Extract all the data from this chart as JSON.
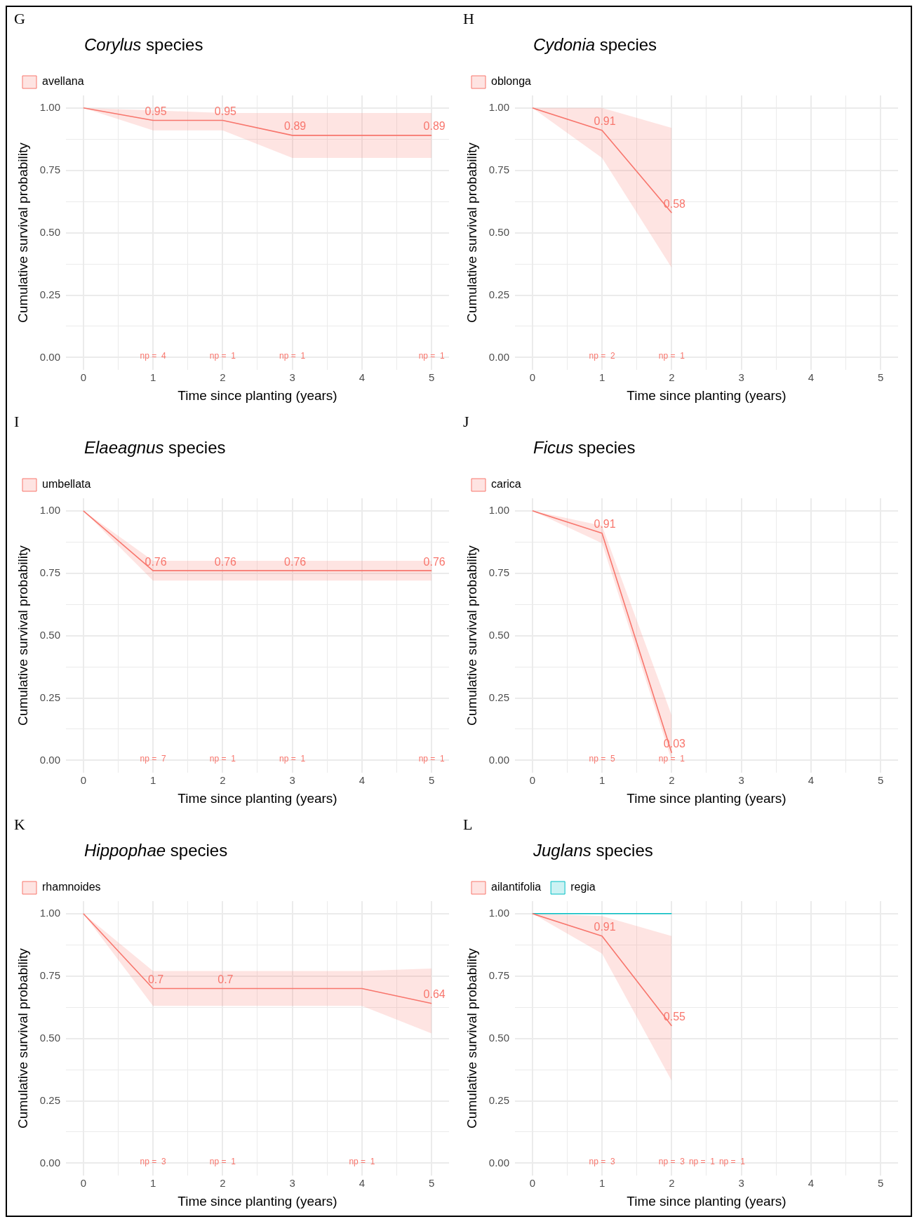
{
  "chart_data": [
    {
      "type": "line",
      "title": "Corylus species",
      "xlabel": "Time since planting (years)",
      "ylabel": "Cumulative survival probability",
      "xlim": [
        -0.25,
        5.25
      ],
      "ylim": [
        -0.05,
        1.05
      ],
      "xticks": [
        0,
        {
          "value": 0.5,
          "label": null
        },
        1,
        {
          "value": 1.5,
          "label": null
        },
        2,
        {
          "value": 2.5,
          "label": null
        },
        3,
        {
          "value": 3.5,
          "label": null
        },
        4,
        {
          "value": 4.5,
          "label": null
        },
        5
      ],
      "yticks": [
        {
          "value": 0,
          "label": "0.00"
        },
        {
          "value": 0.125,
          "label": null
        },
        {
          "value": 0.25,
          "label": "0.25"
        },
        {
          "value": 0.375,
          "label": null
        },
        {
          "value": 0.5,
          "label": "0.50"
        },
        {
          "value": 0.625,
          "label": null
        },
        {
          "value": 0.75,
          "label": "0.75"
        },
        {
          "value": 0.875,
          "label": null
        },
        {
          "value": 1,
          "label": "1.00"
        }
      ],
      "grid": true,
      "legend": "top left",
      "series": [
        {
          "name": "avellana",
          "color": "#f8766d",
          "x": [
            0,
            1,
            2,
            3,
            5
          ],
          "values": [
            1,
            0.95,
            0.95,
            0.89,
            0.89
          ],
          "lower": [
            1,
            0.91,
            0.91,
            0.8,
            0.8
          ],
          "upper": [
            1,
            0.99,
            0.98,
            0.98,
            0.98
          ],
          "value_labels": [
            null,
            "0.95",
            "0.95",
            "0.89",
            "0.89"
          ]
        }
      ],
      "annotations": [
        "G",
        "np =  4",
        "np =  1",
        "np =  1",
        "np =  1"
      ]
    },
    {
      "type": "line",
      "title": "Cydonia species",
      "xlabel": "Time since planting (years)",
      "ylabel": "Cumulative survival probability",
      "xlim": [
        -0.25,
        5.25
      ],
      "ylim": [
        -0.05,
        1.05
      ],
      "xticks": [
        0,
        {
          "value": 0.5,
          "label": null
        },
        1,
        {
          "value": 1.5,
          "label": null
        },
        2,
        {
          "value": 2.5,
          "label": null
        },
        3,
        {
          "value": 3.5,
          "label": null
        },
        4,
        {
          "value": 4.5,
          "label": null
        },
        5
      ],
      "yticks": [
        {
          "value": 0,
          "label": "0.00"
        },
        {
          "value": 0.125,
          "label": null
        },
        {
          "value": 0.25,
          "label": "0.25"
        },
        {
          "value": 0.375,
          "label": null
        },
        {
          "value": 0.5,
          "label": "0.50"
        },
        {
          "value": 0.625,
          "label": null
        },
        {
          "value": 0.75,
          "label": "0.75"
        },
        {
          "value": 0.875,
          "label": null
        },
        {
          "value": 1,
          "label": "1.00"
        }
      ],
      "grid": true,
      "legend": "top left",
      "series": [
        {
          "name": "oblonga",
          "color": "#f8766d",
          "x": [
            0,
            1,
            2
          ],
          "values": [
            1,
            0.91,
            0.58
          ],
          "lower": [
            1,
            0.8,
            0.36
          ],
          "upper": [
            1,
            1,
            0.92
          ],
          "value_labels": [
            null,
            "0.91",
            "0.58"
          ]
        }
      ],
      "annotations": [
        "H",
        "np =  2",
        "np =  1"
      ]
    },
    {
      "type": "line",
      "title": "Elaeagnus species",
      "xlabel": "Time since planting (years)",
      "ylabel": "Cumulative survival probability",
      "xlim": [
        -0.25,
        5.25
      ],
      "ylim": [
        -0.05,
        1.05
      ],
      "xticks": [
        0,
        {
          "value": 0.5,
          "label": null
        },
        1,
        {
          "value": 1.5,
          "label": null
        },
        2,
        {
          "value": 2.5,
          "label": null
        },
        3,
        {
          "value": 3.5,
          "label": null
        },
        4,
        {
          "value": 4.5,
          "label": null
        },
        5
      ],
      "yticks": [
        {
          "value": 0,
          "label": "0.00"
        },
        {
          "value": 0.125,
          "label": null
        },
        {
          "value": 0.25,
          "label": "0.25"
        },
        {
          "value": 0.375,
          "label": null
        },
        {
          "value": 0.5,
          "label": "0.50"
        },
        {
          "value": 0.625,
          "label": null
        },
        {
          "value": 0.75,
          "label": "0.75"
        },
        {
          "value": 0.875,
          "label": null
        },
        {
          "value": 1,
          "label": "1.00"
        }
      ],
      "grid": true,
      "legend": "top left",
      "series": [
        {
          "name": "umbellata",
          "color": "#f8766d",
          "x": [
            0,
            1,
            2,
            3,
            5
          ],
          "values": [
            1,
            0.76,
            0.76,
            0.76,
            0.76
          ],
          "lower": [
            1,
            0.72,
            0.72,
            0.72,
            0.72
          ],
          "upper": [
            1,
            0.8,
            0.8,
            0.8,
            0.8
          ],
          "value_labels": [
            null,
            "0.76",
            "0.76",
            "0.76",
            "0.76"
          ]
        }
      ],
      "annotations": [
        "I",
        "np =  7",
        "np =  1",
        "np =  1",
        "np =  1"
      ]
    },
    {
      "type": "line",
      "title": "Ficus species",
      "xlabel": "Time since planting (years)",
      "ylabel": "Cumulative survival probability",
      "xlim": [
        -0.25,
        5.25
      ],
      "ylim": [
        -0.05,
        1.05
      ],
      "xticks": [
        0,
        {
          "value": 0.5,
          "label": null
        },
        1,
        {
          "value": 1.5,
          "label": null
        },
        2,
        {
          "value": 2.5,
          "label": null
        },
        3,
        {
          "value": 3.5,
          "label": null
        },
        4,
        {
          "value": 4.5,
          "label": null
        },
        5
      ],
      "yticks": [
        {
          "value": 0,
          "label": "0.00"
        },
        {
          "value": 0.125,
          "label": null
        },
        {
          "value": 0.25,
          "label": "0.25"
        },
        {
          "value": 0.375,
          "label": null
        },
        {
          "value": 0.5,
          "label": "0.50"
        },
        {
          "value": 0.625,
          "label": null
        },
        {
          "value": 0.75,
          "label": "0.75"
        },
        {
          "value": 0.875,
          "label": null
        },
        {
          "value": 1,
          "label": "1.00"
        }
      ],
      "grid": true,
      "legend": "top left",
      "series": [
        {
          "name": "carica",
          "color": "#f8766d",
          "x": [
            0,
            1,
            2
          ],
          "values": [
            1,
            0.91,
            0.03
          ],
          "lower": [
            1,
            0.87,
            0
          ],
          "upper": [
            1,
            0.94,
            0.18
          ],
          "value_labels": [
            null,
            "0.91",
            "0.03"
          ]
        }
      ],
      "annotations": [
        "J",
        "np =  5",
        "np =  1"
      ]
    },
    {
      "type": "line",
      "title": "Hippophae species",
      "xlabel": "Time since planting (years)",
      "ylabel": "Cumulative survival probability",
      "xlim": [
        -0.25,
        5.25
      ],
      "ylim": [
        -0.05,
        1.05
      ],
      "xticks": [
        0,
        {
          "value": 0.5,
          "label": null
        },
        1,
        {
          "value": 1.5,
          "label": null
        },
        2,
        {
          "value": 2.5,
          "label": null
        },
        3,
        {
          "value": 3.5,
          "label": null
        },
        4,
        {
          "value": 4.5,
          "label": null
        },
        5
      ],
      "yticks": [
        {
          "value": 0,
          "label": "0.00"
        },
        {
          "value": 0.125,
          "label": null
        },
        {
          "value": 0.25,
          "label": "0.25"
        },
        {
          "value": 0.375,
          "label": null
        },
        {
          "value": 0.5,
          "label": "0.50"
        },
        {
          "value": 0.625,
          "label": null
        },
        {
          "value": 0.75,
          "label": "0.75"
        },
        {
          "value": 0.875,
          "label": null
        },
        {
          "value": 1,
          "label": "1.00"
        }
      ],
      "grid": true,
      "legend": "top left",
      "series": [
        {
          "name": "rhamnoides",
          "color": "#f8766d",
          "x": [
            0,
            1,
            2,
            4,
            5
          ],
          "values": [
            1,
            0.7,
            0.7,
            0.7,
            0.64
          ],
          "lower": [
            1,
            0.63,
            0.63,
            0.63,
            0.52
          ],
          "upper": [
            1,
            0.77,
            0.77,
            0.77,
            0.78
          ],
          "value_labels": [
            null,
            "0.7",
            "0.7",
            null,
            "0.64"
          ]
        }
      ],
      "annotations": [
        "K",
        "np =  3",
        "np =  1",
        "np =  1"
      ]
    },
    {
      "type": "line",
      "title": "Juglans species",
      "xlabel": "Time since planting (years)",
      "ylabel": "Cumulative survival probability",
      "xlim": [
        -0.25,
        5.25
      ],
      "ylim": [
        -0.05,
        1.05
      ],
      "xticks": [
        0,
        {
          "value": 0.5,
          "label": null
        },
        1,
        {
          "value": 1.5,
          "label": null
        },
        2,
        {
          "value": 2.5,
          "label": null
        },
        3,
        {
          "value": 3.5,
          "label": null
        },
        4,
        {
          "value": 4.5,
          "label": null
        },
        5
      ],
      "yticks": [
        {
          "value": 0,
          "label": "0.00"
        },
        {
          "value": 0.125,
          "label": null
        },
        {
          "value": 0.25,
          "label": "0.25"
        },
        {
          "value": 0.375,
          "label": null
        },
        {
          "value": 0.5,
          "label": "0.50"
        },
        {
          "value": 0.625,
          "label": null
        },
        {
          "value": 0.75,
          "label": "0.75"
        },
        {
          "value": 0.875,
          "label": null
        },
        {
          "value": 1,
          "label": "1.00"
        }
      ],
      "grid": true,
      "legend": "top left",
      "series": [
        {
          "name": "ailantifolia",
          "color": "#f8766d",
          "x": [
            0,
            1,
            2
          ],
          "values": [
            1,
            0.91,
            0.55
          ],
          "lower": [
            1,
            0.84,
            0.33
          ],
          "upper": [
            1,
            0.99,
            0.91
          ],
          "value_labels": [
            null,
            "0.91",
            "0.55"
          ]
        },
        {
          "name": "regia",
          "color": "#00bfc4",
          "x": [
            0,
            2
          ],
          "values": [
            1,
            1
          ]
        }
      ],
      "annotations": [
        "L",
        "np =  3",
        "np =  3",
        "np =  1",
        "np =  1"
      ]
    }
  ]
}
